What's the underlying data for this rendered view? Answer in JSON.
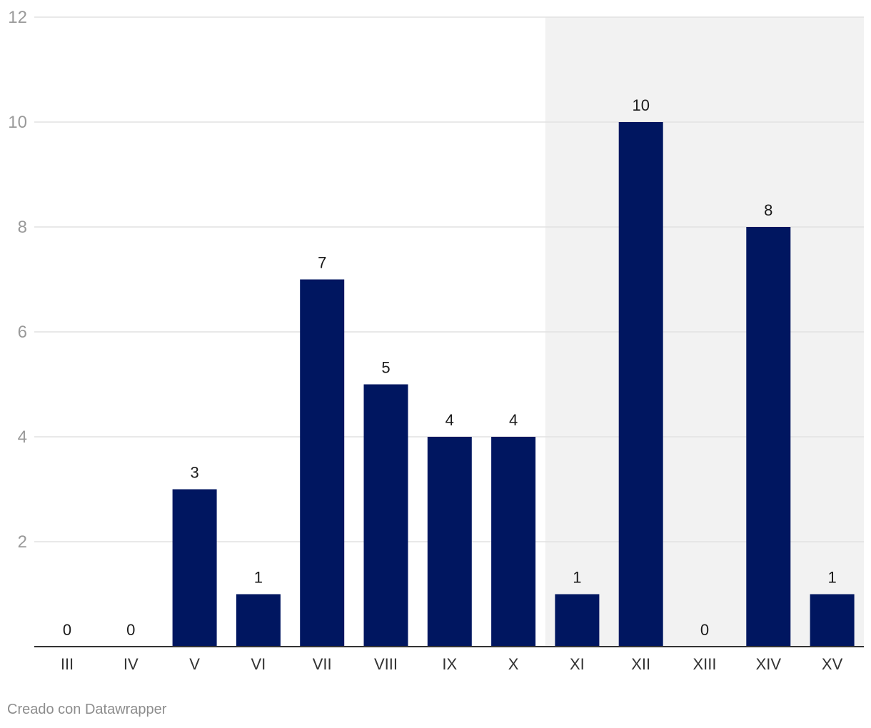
{
  "chart_data": {
    "type": "bar",
    "categories": [
      "III",
      "IV",
      "V",
      "VI",
      "VII",
      "VIII",
      "IX",
      "X",
      "XI",
      "XII",
      "XIII",
      "XIV",
      "XV"
    ],
    "values": [
      0,
      0,
      3,
      1,
      7,
      5,
      4,
      4,
      1,
      10,
      0,
      8,
      1
    ],
    "ylim": [
      0,
      12
    ],
    "yticks": [
      2,
      4,
      6,
      8,
      10,
      12
    ],
    "grid": true,
    "highlight_range": {
      "from": "XI",
      "to": "XV"
    },
    "colors": {
      "bar": "#001660",
      "highlight_band": "#f2f2f2",
      "grid": "#e2e2e2",
      "axis": "#333333"
    }
  },
  "credit": "Creado con Datawrapper"
}
